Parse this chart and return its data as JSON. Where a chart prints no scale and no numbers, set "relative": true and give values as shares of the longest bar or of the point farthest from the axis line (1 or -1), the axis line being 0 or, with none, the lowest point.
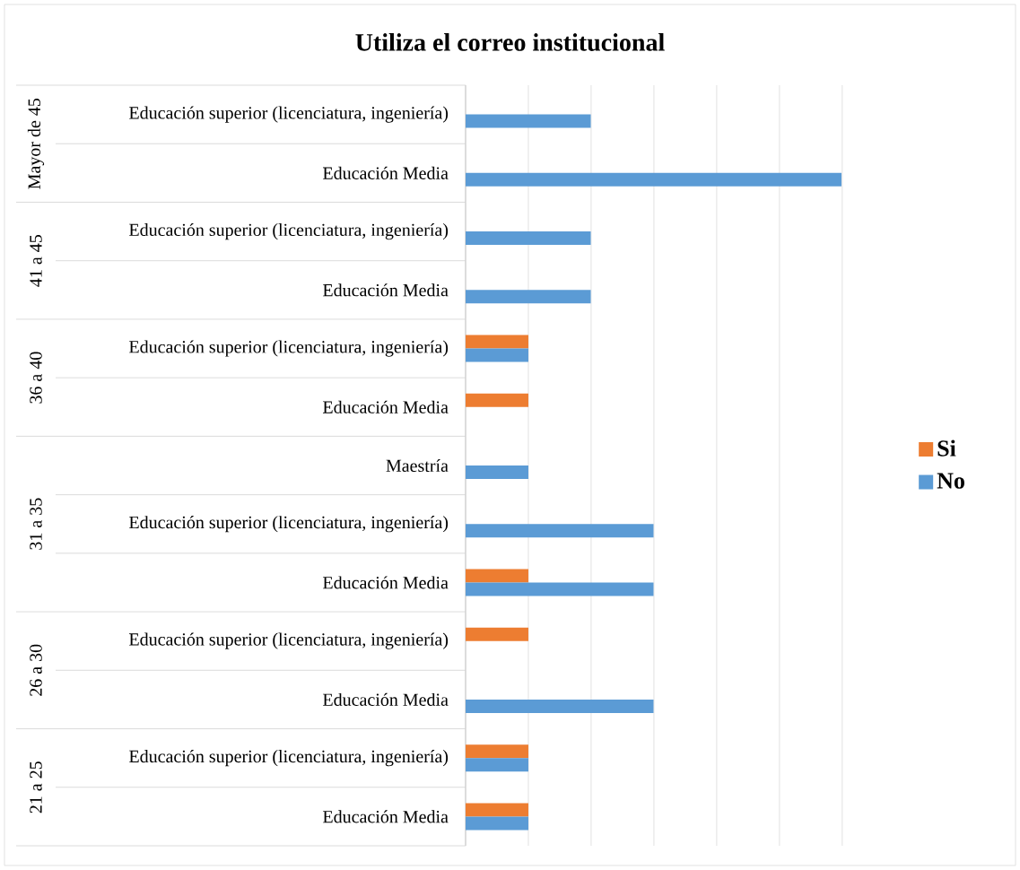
{
  "chart_data": {
    "type": "bar",
    "orientation": "horizontal",
    "relative": true,
    "title": "Utiliza el correo institucional",
    "categories": [
      "Educación superior (licenciatura, ingeniería)",
      "Educación Media",
      "Educación superior (licenciatura, ingeniería)",
      "Educación Media",
      "Educación superior (licenciatura, ingeniería)",
      "Educación Media",
      "Maestría",
      "Educación superior (licenciatura, ingeniería)",
      "Educación Media",
      "Educación superior (licenciatura, ingeniería)",
      "Educación Media",
      "Educación superior (licenciatura, ingeniería)",
      "Educación Media"
    ],
    "annotations": [
      "Mayor de 45",
      "41 a 45",
      "36 a 40",
      "31 a 35",
      "26 a 30",
      "21 a 25"
    ],
    "series": [
      {
        "name": "Si",
        "color": "#ed7d31",
        "values": [
          null,
          null,
          null,
          null,
          0.167,
          0.167,
          null,
          null,
          0.167,
          0.167,
          null,
          0.167,
          0.167
        ]
      },
      {
        "name": "No",
        "color": "#5b9bd5",
        "values": [
          0.333,
          1,
          0.333,
          0.333,
          0.167,
          null,
          0.167,
          0.5,
          0.5,
          null,
          0.5,
          0.167,
          0.167
        ]
      }
    ],
    "grid": "x",
    "legend": "right"
  }
}
